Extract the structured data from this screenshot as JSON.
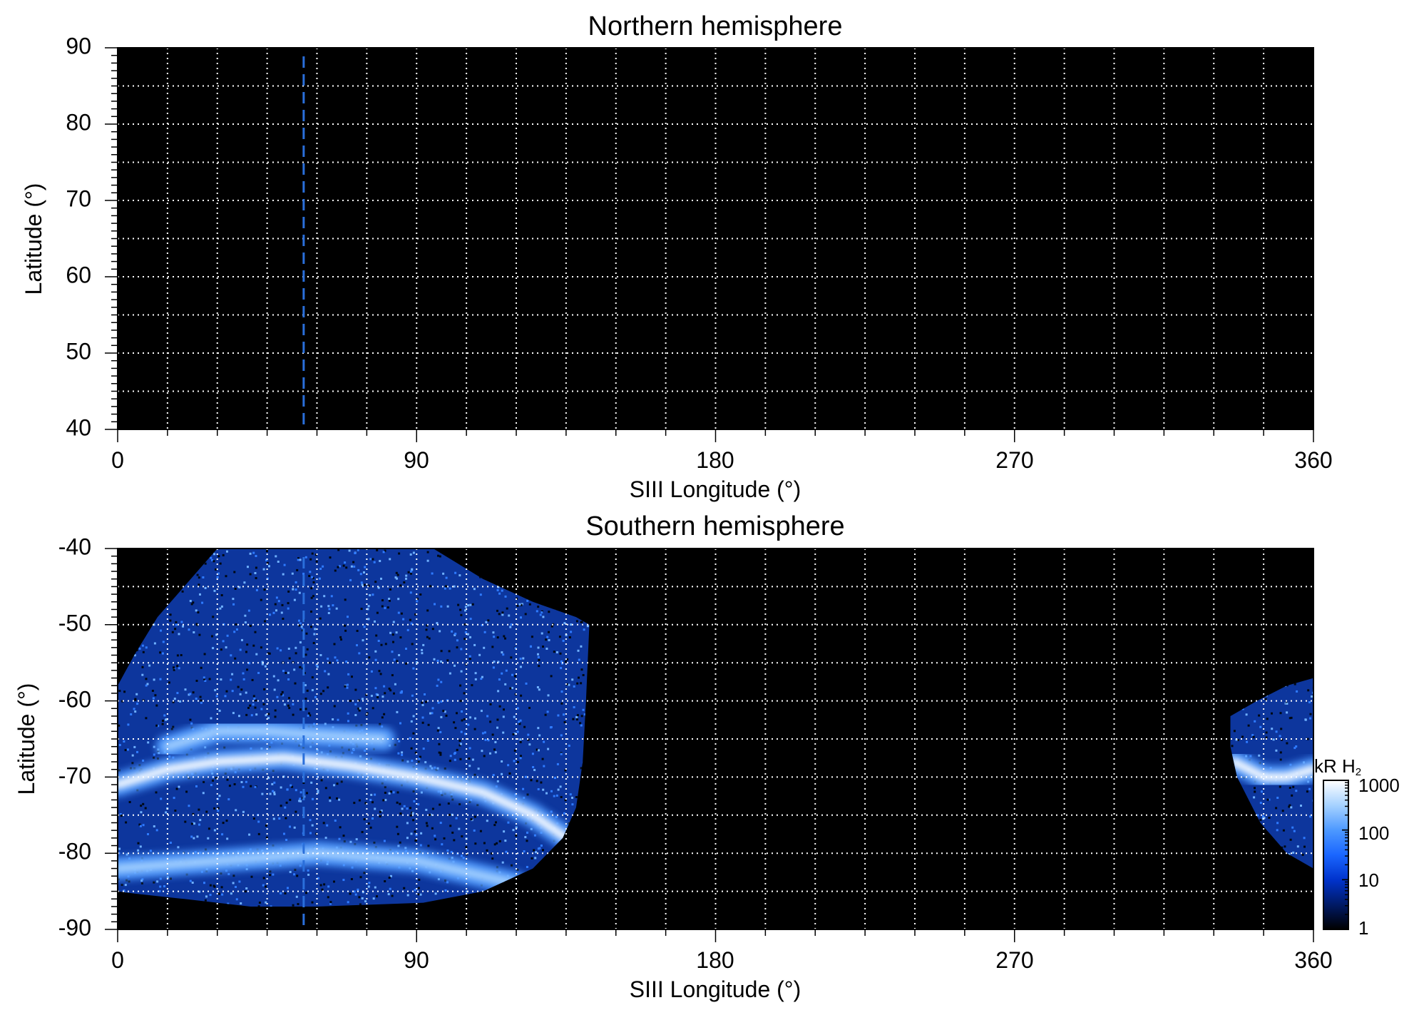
{
  "chart_data": [
    {
      "type": "heatmap",
      "title": "Northern hemisphere",
      "xlabel": "SIII Longitude (°)",
      "ylabel": "Latitude (°)",
      "xlim": [
        0,
        360
      ],
      "ylim": [
        40,
        90
      ],
      "x_ticks": [
        0,
        90,
        180,
        270,
        360
      ],
      "x_tick_labels": [
        "0",
        "90",
        "180",
        "270",
        "360"
      ],
      "y_ticks": [
        40,
        50,
        60,
        70,
        80,
        90
      ],
      "y_tick_labels": [
        "40",
        "50",
        "60",
        "70",
        "80",
        "90"
      ],
      "grid": true,
      "grid_x_step": 15,
      "grid_y_step": 5,
      "background_color": "#000000",
      "grid_color": "#ffffff",
      "marker_longitude": 56,
      "marker_color": "#2a6fdb",
      "emission_regions": []
    },
    {
      "type": "heatmap",
      "title": "Southern hemisphere",
      "xlabel": "SIII Longitude (°)",
      "ylabel": "Latitude (°)",
      "xlim": [
        0,
        360
      ],
      "ylim": [
        -90,
        -40
      ],
      "x_ticks": [
        0,
        90,
        180,
        270,
        360
      ],
      "x_tick_labels": [
        "0",
        "90",
        "180",
        "270",
        "360"
      ],
      "y_ticks": [
        -90,
        -80,
        -70,
        -60,
        -50,
        -40
      ],
      "y_tick_labels": [
        "-90",
        "-80",
        "-70",
        "-60",
        "-50",
        "-40"
      ],
      "grid": true,
      "grid_x_step": 15,
      "grid_y_step": 5,
      "background_color": "#000000",
      "grid_color": "#ffffff",
      "marker_longitude": 56,
      "marker_color": "#2a6fdb",
      "emission_regions": [
        {
          "name": "main-observed-region",
          "outline": [
            [
              0,
              -58
            ],
            [
              5,
              -54
            ],
            [
              12,
              -49
            ],
            [
              20,
              -45
            ],
            [
              28,
              -41
            ],
            [
              30,
              -40
            ],
            [
              95,
              -40
            ],
            [
              110,
              -44
            ],
            [
              125,
              -47
            ],
            [
              138,
              -49
            ],
            [
              142,
              -50
            ],
            [
              141,
              -60
            ],
            [
              140,
              -68
            ],
            [
              138,
              -74
            ],
            [
              134,
              -78
            ],
            [
              125,
              -82
            ],
            [
              110,
              -85
            ],
            [
              92,
              -86.5
            ],
            [
              60,
              -87
            ],
            [
              40,
              -87
            ],
            [
              20,
              -86
            ],
            [
              5,
              -85.3
            ],
            [
              0,
              -85
            ]
          ],
          "bands": [
            {
              "points": [
                [
                  0,
                  -71
                ],
                [
                  15,
                  -69
                ],
                [
                  30,
                  -68
                ],
                [
                  50,
                  -67.5
                ],
                [
                  70,
                  -68.5
                ],
                [
                  90,
                  -70
                ],
                [
                  110,
                  -72
                ],
                [
                  125,
                  -75
                ],
                [
                  135,
                  -78
                ]
              ],
              "intensity": 1000
            },
            {
              "points": [
                [
                  15,
                  -66
                ],
                [
                  30,
                  -64
                ],
                [
                  45,
                  -64
                ],
                [
                  60,
                  -64.5
                ],
                [
                  80,
                  -65
                ]
              ],
              "intensity": 400
            },
            {
              "points": [
                [
                  0,
                  -82
                ],
                [
                  30,
                  -81
                ],
                [
                  60,
                  -80
                ],
                [
                  90,
                  -81
                ],
                [
                  120,
                  -84
                ]
              ],
              "intensity": 250
            }
          ]
        },
        {
          "name": "edge-observed-region",
          "outline": [
            [
              335,
              -62
            ],
            [
              343,
              -60
            ],
            [
              352,
              -58
            ],
            [
              360,
              -57
            ],
            [
              360,
              -82
            ],
            [
              352,
              -80
            ],
            [
              344,
              -76
            ],
            [
              337,
              -70
            ],
            [
              335,
              -66
            ]
          ],
          "bands": [
            {
              "points": [
                [
                  336,
                  -68
                ],
                [
                  345,
                  -70
                ],
                [
                  352,
                  -70
                ],
                [
                  360,
                  -69
                ]
              ],
              "intensity": 1000
            }
          ]
        }
      ],
      "colorbar": {
        "label_main": "kR H",
        "label_sub": "2",
        "scale": "log",
        "ticks": [
          1,
          10,
          100,
          1000
        ],
        "tick_labels": [
          "1",
          "10",
          "100",
          "1000"
        ],
        "colors": [
          "#000000",
          "#001a66",
          "#0033cc",
          "#1a66ff",
          "#4d99ff",
          "#a6d2ff",
          "#ffffff"
        ]
      }
    }
  ]
}
